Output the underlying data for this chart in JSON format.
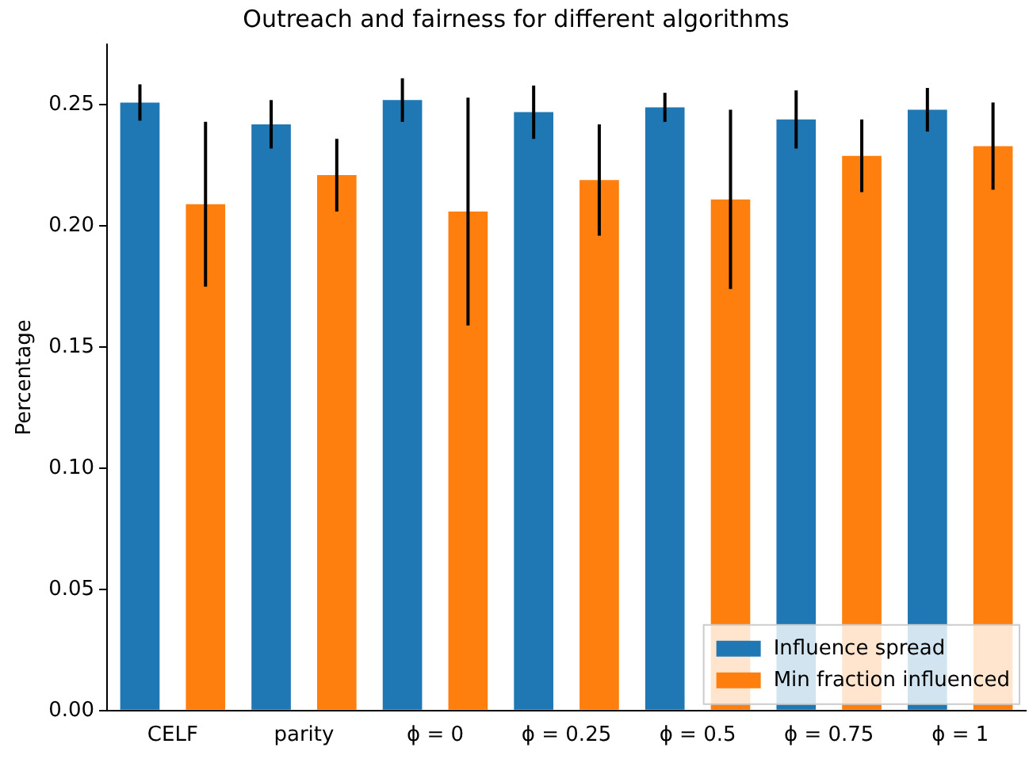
{
  "chart_data": {
    "type": "bar",
    "title": "Outreach and fairness for different algorithms",
    "ylabel": "Percentage",
    "categories": [
      "CELF",
      "parity",
      "ϕ = 0",
      "ϕ = 0.25",
      "ϕ = 0.5",
      "ϕ = 0.75",
      "ϕ = 1"
    ],
    "series": [
      {
        "name": "Influence spread",
        "color": "#1f77b4",
        "values": [
          0.251,
          0.242,
          0.252,
          0.247,
          0.249,
          0.244,
          0.248
        ],
        "errors": [
          0.0075,
          0.01,
          0.009,
          0.011,
          0.006,
          0.012,
          0.009
        ]
      },
      {
        "name": "Min fraction influenced",
        "color": "#ff7f0e",
        "values": [
          0.209,
          0.221,
          0.206,
          0.219,
          0.211,
          0.229,
          0.233
        ],
        "errors": [
          0.034,
          0.015,
          0.047,
          0.023,
          0.037,
          0.015,
          0.018
        ]
      }
    ],
    "ylim": [
      0,
      0.275
    ],
    "yticks": [
      {
        "value": 0,
        "label": "0.00"
      },
      {
        "value": 0.05,
        "label": "0.05"
      },
      {
        "value": 0.1,
        "label": "0.10"
      },
      {
        "value": 0.15,
        "label": "0.15"
      },
      {
        "value": 0.2,
        "label": "0.20"
      },
      {
        "value": 0.25,
        "label": "0.25"
      }
    ],
    "legend": "bottom right",
    "grid": false
  }
}
